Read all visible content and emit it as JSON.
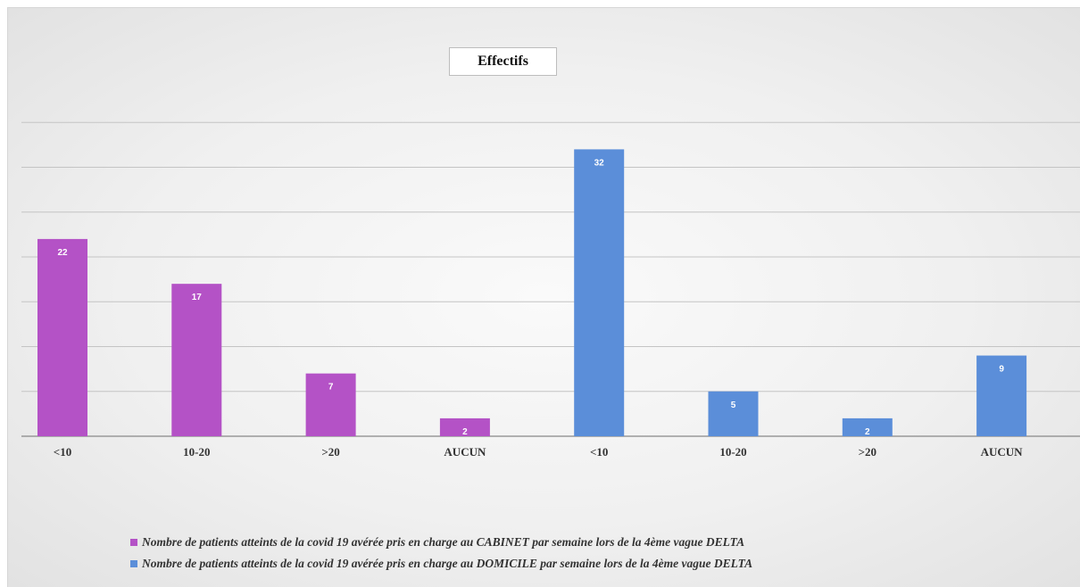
{
  "chart_data": {
    "type": "bar",
    "title": "Effectifs",
    "categories": [
      "<10",
      "10-20",
      ">20",
      "AUCUN",
      "<10",
      "10-20",
      ">20",
      "AUCUN"
    ],
    "series": [
      {
        "name": "Nombre de patients atteints de la covid 19 avérée pris en charge au CABINET  par semaine lors de la 4ème vague DELTA",
        "color": "#b452c6",
        "values": [
          22,
          17,
          7,
          2,
          null,
          null,
          null,
          null
        ]
      },
      {
        "name": "Nombre de patients atteints de la covid 19 avérée pris en charge au DOMICILE  par semaine lors de la 4ème vague DELTA",
        "color": "#5b8ed9",
        "values": [
          null,
          null,
          null,
          null,
          32,
          5,
          2,
          9
        ]
      }
    ],
    "ylim": [
      0,
      35
    ],
    "grid": true,
    "legend_position": "bottom"
  }
}
